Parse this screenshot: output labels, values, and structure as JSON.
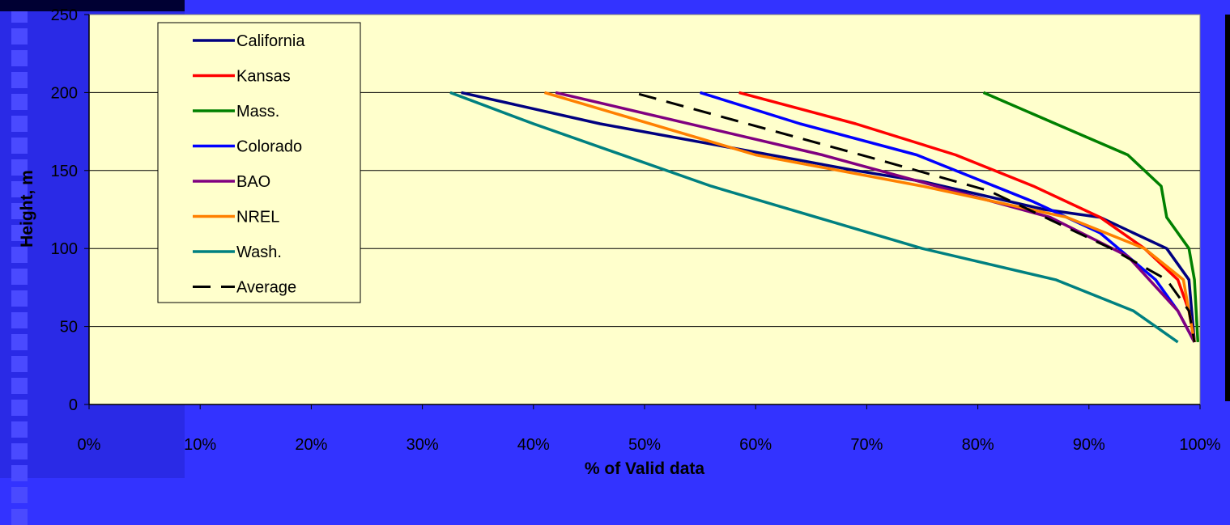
{
  "chart_data": {
    "type": "line",
    "xlabel": "% of Valid data",
    "ylabel": "Height, m",
    "xlim": [
      0,
      100
    ],
    "ylim": [
      0,
      250
    ],
    "x_ticks": [
      "0%",
      "10%",
      "20%",
      "30%",
      "40%",
      "50%",
      "60%",
      "70%",
      "80%",
      "90%",
      "100%"
    ],
    "y_ticks": [
      "0",
      "50",
      "100",
      "150",
      "200",
      "250"
    ],
    "grid": "horizontal",
    "legend_placement": "top-left",
    "plot_background": "#ffffcc",
    "series": [
      {
        "name": "California",
        "color": "#000080",
        "dash": false,
        "x": [
          33.5,
          46,
          69,
          75,
          86,
          91,
          97,
          99,
          99.5
        ],
        "y": [
          200,
          180,
          150,
          143,
          125,
          120,
          100,
          80,
          40
        ]
      },
      {
        "name": "Kansas",
        "color": "#ff0000",
        "dash": false,
        "x": [
          58.5,
          69,
          78,
          85,
          91,
          95,
          98,
          99,
          99.5
        ],
        "y": [
          200,
          180,
          160,
          140,
          120,
          100,
          80,
          60,
          40
        ]
      },
      {
        "name": "Mass.",
        "color": "#008000",
        "dash": false,
        "x": [
          80.5,
          87,
          93.5,
          96.5,
          97,
          99,
          99.5,
          99.8
        ],
        "y": [
          200,
          180,
          160,
          140,
          120,
          100,
          80,
          40
        ]
      },
      {
        "name": "Colorado",
        "color": "#0000ff",
        "dash": false,
        "x": [
          55,
          64,
          74.5,
          85,
          91,
          96,
          98,
          99.5
        ],
        "y": [
          200,
          180,
          160,
          130,
          110,
          80,
          60,
          40
        ]
      },
      {
        "name": "BAO",
        "color": "#800080",
        "dash": false,
        "x": [
          42,
          66,
          86.5,
          93.5,
          98,
          99.5
        ],
        "y": [
          200,
          160,
          120,
          95,
          60,
          40
        ]
      },
      {
        "name": "NREL",
        "color": "#ff8000",
        "dash": false,
        "x": [
          41,
          60,
          75,
          88,
          95,
          98.5,
          99.5
        ],
        "y": [
          200,
          160,
          140,
          120,
          100,
          80,
          40
        ]
      },
      {
        "name": "Wash.",
        "color": "#008080",
        "dash": false,
        "x": [
          32.5,
          40,
          56,
          75,
          87,
          94,
          96,
          98
        ],
        "y": [
          200,
          180,
          140,
          100,
          80,
          60,
          50,
          40
        ]
      },
      {
        "name": "Average",
        "color": "#000000",
        "dash": true,
        "x": [
          49.5,
          70,
          81,
          92,
          97,
          99,
          99.5
        ],
        "y": [
          199,
          159,
          137,
          100,
          80,
          60,
          40
        ]
      }
    ]
  }
}
